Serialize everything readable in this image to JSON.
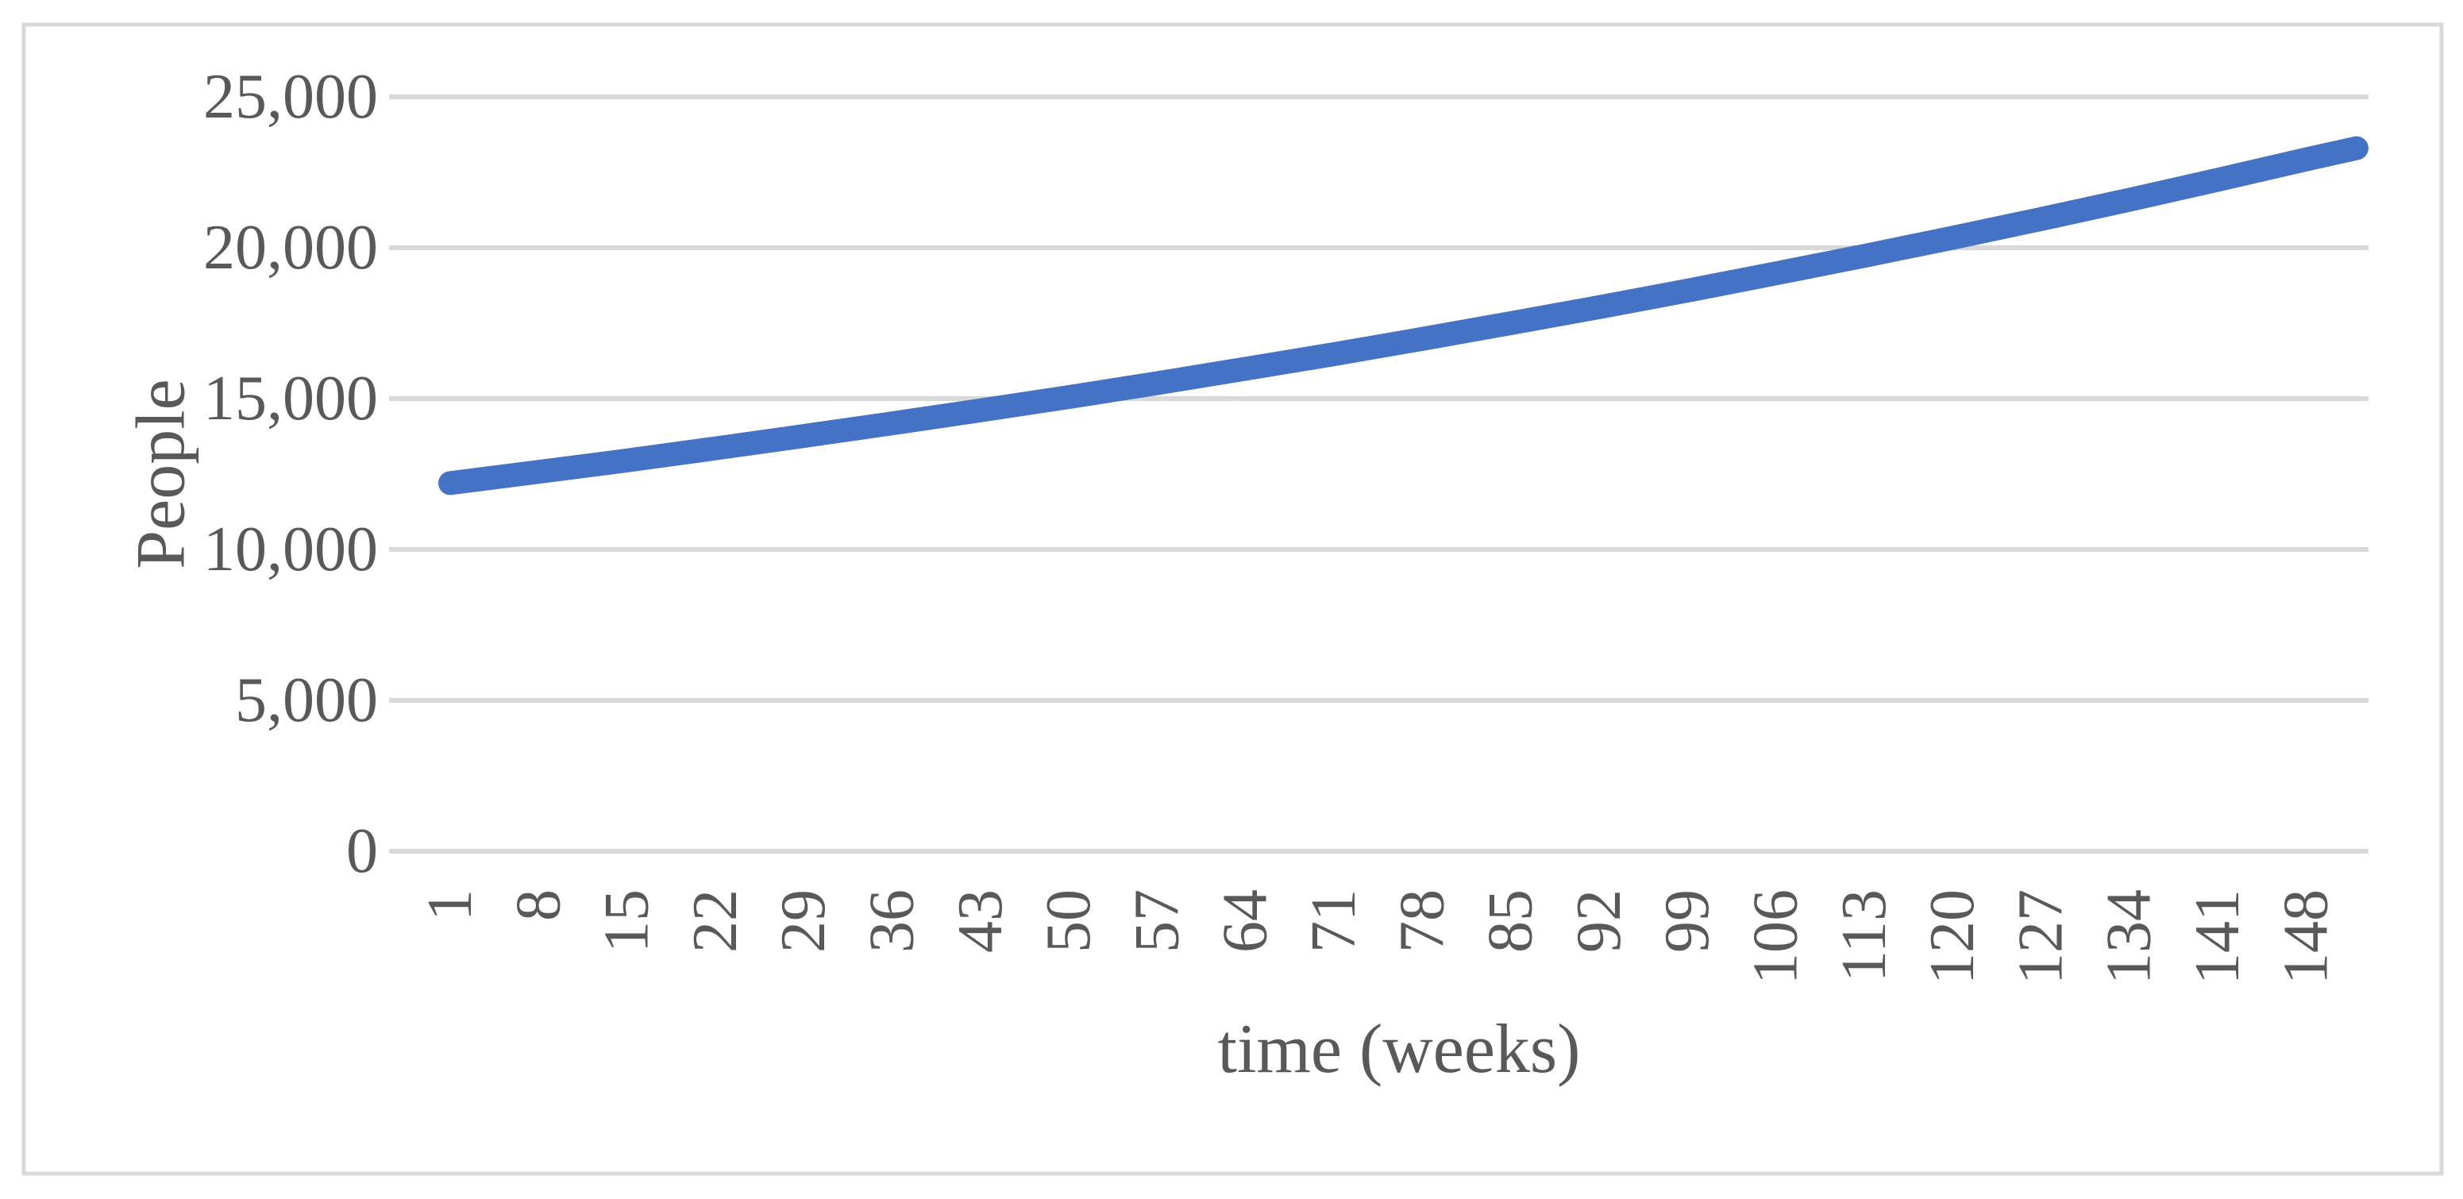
{
  "figure": {
    "background_color": "#FFFFFF",
    "border_color": "#D9D9D9"
  },
  "chart_data": {
    "type": "line",
    "title": "",
    "xlabel": "time (weeks)",
    "ylabel": "People",
    "x": [
      1,
      8,
      15,
      22,
      29,
      36,
      43,
      50,
      57,
      64,
      71,
      78,
      85,
      92,
      99,
      106,
      113,
      120,
      127,
      134,
      141,
      148,
      152
    ],
    "values": [
      12200,
      12570,
      12950,
      13350,
      13760,
      14180,
      14610,
      15050,
      15510,
      15990,
      16470,
      16980,
      17500,
      18030,
      18580,
      19150,
      19730,
      20330,
      20950,
      21590,
      22250,
      22930,
      23300
    ],
    "xticks": [
      1,
      8,
      15,
      22,
      29,
      36,
      43,
      50,
      57,
      64,
      71,
      78,
      85,
      92,
      99,
      106,
      113,
      120,
      127,
      134,
      141,
      148
    ],
    "ytick_values": [
      0,
      5000,
      10000,
      15000,
      20000,
      25000
    ],
    "ytick_labels": [
      "0",
      "5,000",
      "10,000",
      "15,000",
      "20,000",
      "25,000"
    ],
    "xlim": [
      1,
      152
    ],
    "ylim": [
      0,
      25000
    ],
    "grid": "horizontal",
    "legend": "none",
    "line_color": "#4472C4",
    "gridline_color": "#D9D9D9",
    "text_color": "#595959"
  }
}
